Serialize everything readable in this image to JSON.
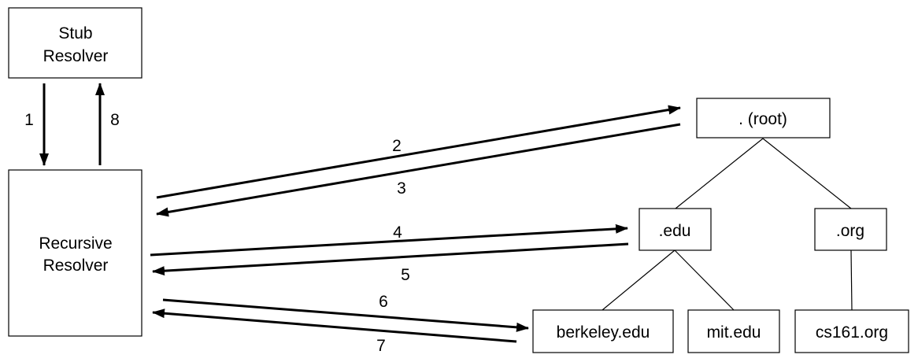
{
  "nodes": {
    "stub": {
      "lines": [
        "Stub",
        "Resolver"
      ]
    },
    "recursive": {
      "lines": [
        "Recursive",
        "Resolver"
      ]
    },
    "root": {
      "label": ". (root)"
    },
    "edu": {
      "label": ".edu"
    },
    "org": {
      "label": ".org"
    },
    "berkeley": {
      "label": "berkeley.edu"
    },
    "mit": {
      "label": "mit.edu"
    },
    "cs161": {
      "label": "cs161.org"
    }
  },
  "steps": [
    "1",
    "2",
    "3",
    "4",
    "5",
    "6",
    "7",
    "8"
  ]
}
